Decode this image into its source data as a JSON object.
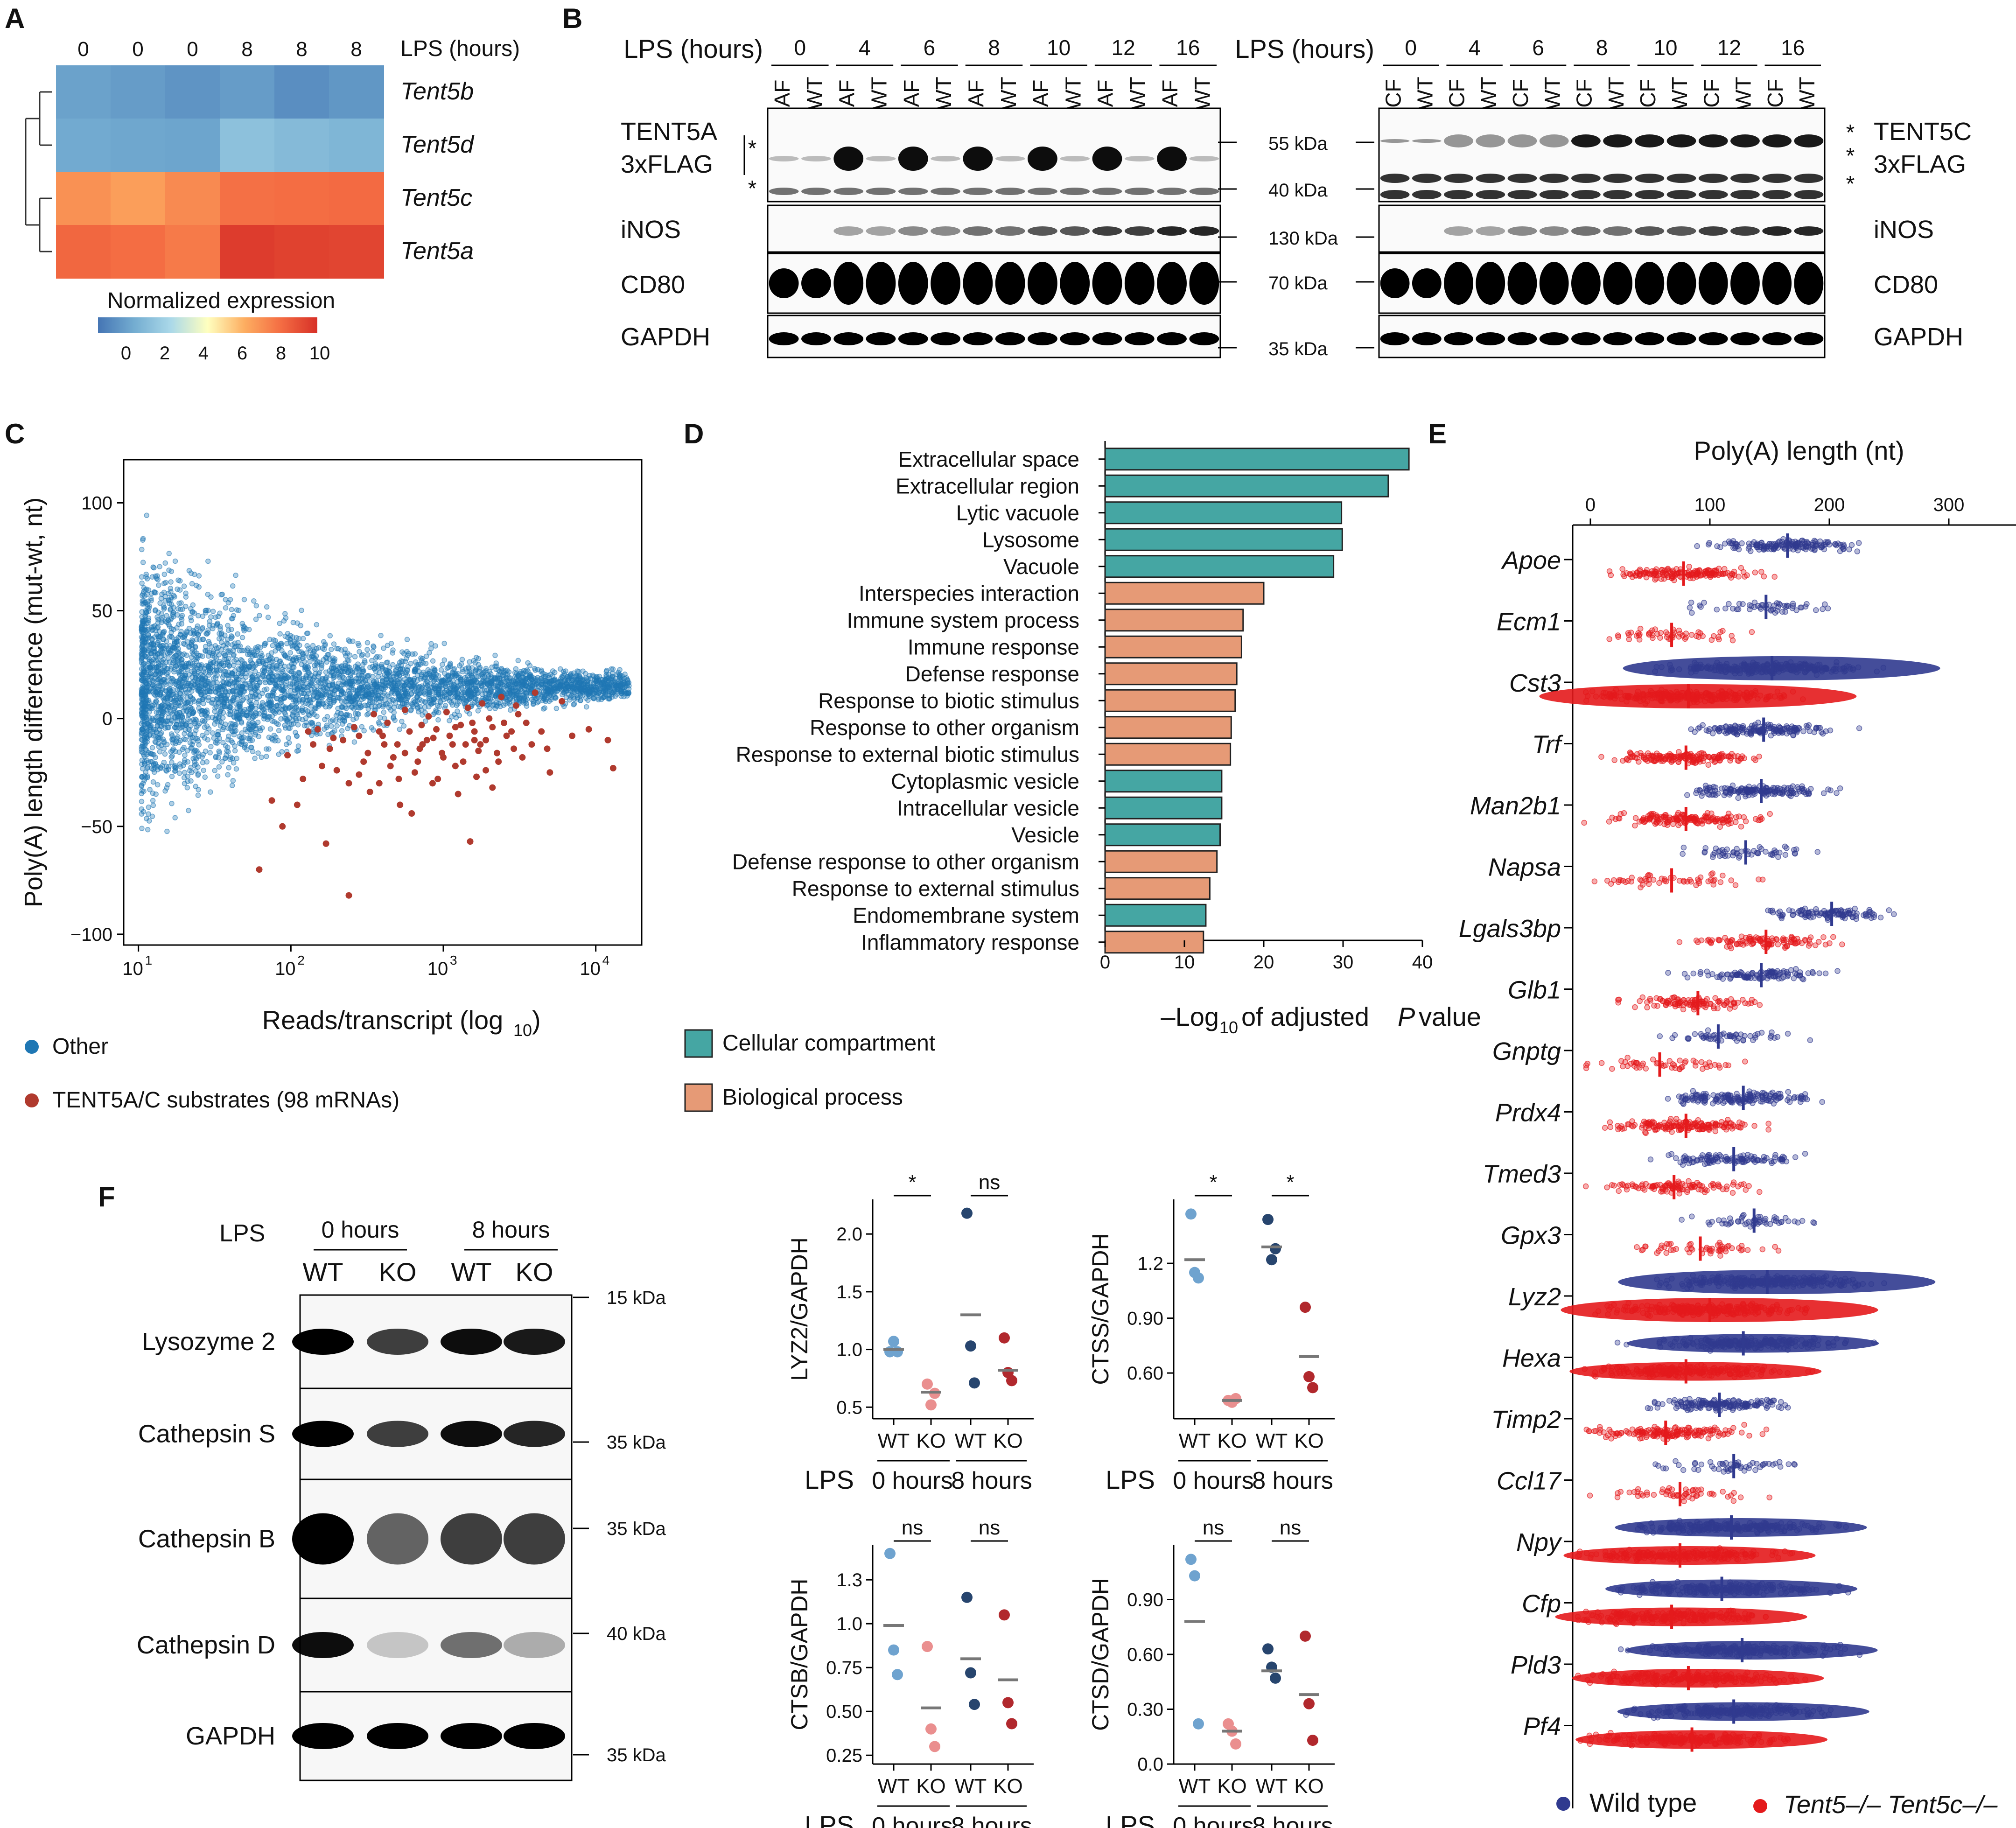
{
  "panels": {
    "A": "A",
    "B": "B",
    "C": "C",
    "D": "D",
    "E": "E",
    "F": "F"
  },
  "heatmap": {
    "lps_label": "LPS (hours)",
    "columns": [
      "0",
      "0",
      "0",
      "8",
      "8",
      "8"
    ],
    "genes": [
      "Tent5b",
      "Tent5d",
      "Tent5c",
      "Tent5a"
    ],
    "values": [
      [
        1.6,
        1.4,
        1.1,
        1.4,
        0.9,
        1.2
      ],
      [
        1.9,
        1.8,
        1.7,
        2.9,
        2.6,
        2.4
      ],
      [
        6.9,
        6.5,
        7.1,
        7.9,
        8.0,
        8.1
      ],
      [
        8.2,
        8.0,
        7.6,
        9.6,
        9.4,
        9.3
      ]
    ],
    "scale_title": "Normalized expression",
    "scale_ticks": [
      "0",
      "2",
      "4",
      "6",
      "8",
      "10"
    ]
  },
  "blotB": {
    "lps_label": "LPS (hours)",
    "times": [
      "0",
      "4",
      "6",
      "8",
      "10",
      "12",
      "16"
    ],
    "left_lanes": [
      "AF",
      "WT"
    ],
    "right_lanes": [
      "CF",
      "WT"
    ],
    "left_rows": [
      "TENT5A\n3xFLAG",
      "iNOS",
      "CD80",
      "GAPDH"
    ],
    "right_rows": [
      "TENT5C\n3xFLAG",
      "iNOS",
      "CD80",
      "GAPDH"
    ],
    "markers": [
      "55 kDa",
      "40 kDa",
      "130 kDa",
      "70 kDa",
      "35 kDa"
    ],
    "star": "*"
  },
  "chart_data": [
    {
      "type": "scatter",
      "panel": "C",
      "xlabel": "Reads/transcript (log10)",
      "ylabel": "Poly(A) length difference (mut-wt, nt)",
      "xscale": "log",
      "xlim": [
        8,
        20000
      ],
      "ylim": [
        -105,
        120
      ],
      "x_ticks": [
        "10^1",
        "10^2",
        "10^3",
        "10^4"
      ],
      "y_ticks": [
        100,
        50,
        0,
        -50,
        -100
      ],
      "series": [
        {
          "name": "Other",
          "color": "#1f77b4",
          "note_count": "~5000 points, dense funnel around y=0"
        },
        {
          "name": "TENT5A/C substrates (98 mRNAs)",
          "color": "#b03a2e",
          "points": [
            [
              62,
              -70
            ],
            [
              95,
              -17
            ],
            [
              120,
              -28
            ],
            [
              140,
              -12
            ],
            [
              170,
              -58
            ],
            [
              220,
              -10
            ],
            [
              240,
              -82
            ],
            [
              300,
              -20
            ],
            [
              320,
              -16
            ],
            [
              380,
              -30
            ],
            [
              400,
              -8
            ],
            [
              450,
              -22
            ],
            [
              500,
              -12
            ],
            [
              520,
              -40
            ],
            [
              600,
              -6
            ],
            [
              650,
              -25
            ],
            [
              700,
              -14
            ],
            [
              780,
              -10
            ],
            [
              850,
              -30
            ],
            [
              900,
              -5
            ],
            [
              1000,
              -18
            ],
            [
              1100,
              -8
            ],
            [
              1200,
              -22
            ],
            [
              1300,
              -3
            ],
            [
              1400,
              -12
            ],
            [
              1500,
              -57
            ],
            [
              1600,
              -6
            ],
            [
              1700,
              -15
            ],
            [
              1900,
              -10
            ],
            [
              2100,
              -4
            ],
            [
              2300,
              -20
            ],
            [
              2600,
              -8
            ],
            [
              3000,
              6
            ],
            [
              3500,
              -2
            ],
            [
              4000,
              12
            ],
            [
              5000,
              -25
            ],
            [
              6000,
              8
            ],
            [
              9000,
              -5
            ],
            [
              12000,
              -10
            ],
            [
              13000,
              -23
            ],
            [
              150,
              -5
            ],
            [
              260,
              -4
            ],
            [
              350,
              2
            ],
            [
              430,
              -2
            ],
            [
              560,
              4
            ],
            [
              800,
              1
            ],
            [
              1050,
              3
            ],
            [
              1450,
              5
            ],
            [
              1800,
              7
            ],
            [
              2400,
              10
            ],
            [
              2800,
              -6
            ],
            [
              180,
              -14
            ],
            [
              280,
              -8
            ],
            [
              470,
              -18
            ],
            [
              680,
              -20
            ],
            [
              920,
              -28
            ],
            [
              1250,
              -35
            ],
            [
              1650,
              -27
            ],
            [
              2100,
              -32
            ],
            [
              110,
              -40
            ],
            [
              75,
              -38
            ],
            [
              88,
              -50
            ],
            [
              200,
              -24
            ],
            [
              330,
              -34
            ],
            [
              620,
              -44
            ],
            [
              1150,
              -12
            ],
            [
              1550,
              -2
            ],
            [
              2000,
              0
            ],
            [
              2900,
              -14
            ],
            [
              3300,
              -18
            ],
            [
              4400,
              -6
            ],
            [
              240,
              -30
            ],
            [
              160,
              -22
            ],
            [
              130,
              -6
            ],
            [
              510,
              -28
            ],
            [
              720,
              -3
            ],
            [
              980,
              -16
            ],
            [
              1350,
              -20
            ],
            [
              1750,
              -12
            ],
            [
              2250,
              -16
            ],
            [
              3800,
              -12
            ],
            [
              410,
              -12
            ],
            [
              560,
              -16
            ],
            [
              860,
              -9
            ],
            [
              1200,
              -4
            ],
            [
              1600,
              -10
            ],
            [
              2500,
              -2
            ],
            [
              3100,
              2
            ],
            [
              4800,
              -14
            ],
            [
              7000,
              -8
            ],
            [
              190,
              -9
            ],
            [
              280,
              -26
            ],
            [
              380,
              -6
            ],
            [
              730,
              -12
            ],
            [
              1900,
              -24
            ]
          ]
        }
      ],
      "legend": [
        "Other",
        "TENT5A/C substrates (98 mRNAs)"
      ]
    },
    {
      "type": "bar",
      "panel": "D",
      "categories": [
        "Extracellular space",
        "Extracellular region",
        "Lytic vacuole",
        "Lysosome",
        "Vacuole",
        "Interspecies interaction",
        "Immune system process",
        "Immune response",
        "Defense response",
        "Response to biotic stimulus",
        "Response to other organism",
        "Response to external biotic stimulus",
        "Cytoplasmic vesicle",
        "Intracellular vesicle",
        "Vesicle",
        "Defense response to other organism",
        "Response to external stimulus",
        "Endomembrane system",
        "Inflammatory response"
      ],
      "values": [
        38.3,
        35.7,
        29.8,
        29.9,
        28.8,
        20.0,
        17.4,
        17.2,
        16.6,
        16.4,
        15.9,
        15.8,
        14.7,
        14.7,
        14.5,
        14.1,
        13.2,
        12.7,
        12.4
      ],
      "groups": [
        "cc",
        "cc",
        "cc",
        "cc",
        "cc",
        "bp",
        "bp",
        "bp",
        "bp",
        "bp",
        "bp",
        "bp",
        "cc",
        "cc",
        "cc",
        "bp",
        "bp",
        "cc",
        "bp"
      ],
      "xlabel": "–Log10 of adjusted P value",
      "xlim": [
        0,
        40
      ],
      "x_ticks": [
        "0",
        "10",
        "20",
        "30",
        "40"
      ],
      "legend": [
        {
          "name": "Cellular compartment",
          "color": "#45a6a3"
        },
        {
          "name": "Biological process",
          "color": "#e69a76"
        }
      ]
    },
    {
      "type": "scatter",
      "panel": "E",
      "title": "Poly(A) length (nt)",
      "x_ticks": [
        "0",
        "100",
        "200",
        "300"
      ],
      "xlim": [
        -15,
        350
      ],
      "genes": [
        "Apoe",
        "Ecm1",
        "Cst3",
        "Trf",
        "Man2b1",
        "Napsa",
        "Lgals3bp",
        "Glb1",
        "Gnptg",
        "Prdx4",
        "Tmed3",
        "Gpx3",
        "Lyz2",
        "Hexa",
        "Timp2",
        "Ccl17",
        "Npy",
        "Cfp",
        "Pld3",
        "Pf4"
      ],
      "wt_median": [
        165,
        147,
        152,
        145,
        143,
        130,
        202,
        143,
        107,
        128,
        120,
        137,
        148,
        128,
        108,
        120,
        118,
        110,
        127,
        120
      ],
      "mut_median": [
        78,
        68,
        82,
        80,
        80,
        68,
        147,
        90,
        58,
        80,
        70,
        92,
        100,
        80,
        63,
        75,
        75,
        68,
        82,
        85
      ],
      "density": [
        3,
        1,
        5,
        3,
        3,
        1,
        2,
        2,
        1,
        3,
        2,
        1,
        5,
        4,
        3,
        1,
        4,
        4,
        4,
        4
      ],
      "legend": [
        {
          "name": "Wild type",
          "color": "#303a8f"
        },
        {
          "name": "Tent5–/– Tent5c–/–",
          "color": "#e41a1c"
        }
      ]
    },
    {
      "type": "scatter",
      "panel": "F",
      "plots": [
        {
          "ylabel": "LYZ2/GAPDH",
          "ylim": [
            0.4,
            2.3
          ],
          "y_ticks": [
            2.0,
            1.5,
            1.0,
            0.5
          ],
          "sig": [
            "*",
            "ns"
          ],
          "points": [
            [
              0.98,
              1.07,
              0.98
            ],
            [
              0.7,
              0.52,
              0.62
            ],
            [
              2.18,
              1.03,
              0.71
            ],
            [
              1.1,
              0.8,
              0.73
            ]
          ],
          "means": [
            1.0,
            0.63,
            1.3,
            0.82
          ]
        },
        {
          "ylabel": "CTSS/GAPDH",
          "ylim": [
            0.35,
            1.55
          ],
          "y_ticks": [
            1.2,
            0.9,
            0.6
          ],
          "sig": [
            "*",
            "*"
          ],
          "points": [
            [
              1.47,
              1.15,
              1.12
            ],
            [
              0.45,
              0.44,
              0.46
            ],
            [
              1.44,
              1.22,
              1.28
            ],
            [
              0.96,
              0.58,
              0.52
            ]
          ],
          "means": [
            1.22,
            0.45,
            1.29,
            0.69
          ]
        },
        {
          "ylabel": "CTSB/GAPDH",
          "ylim": [
            0.2,
            1.45
          ],
          "y_ticks": [
            1.25,
            1.0,
            0.75,
            0.5,
            0.25
          ],
          "sig": [
            "ns",
            "ns"
          ],
          "points": [
            [
              1.4,
              0.85,
              0.71
            ],
            [
              0.87,
              0.4,
              0.3
            ],
            [
              1.15,
              0.72,
              0.54
            ],
            [
              1.05,
              0.55,
              0.43
            ]
          ],
          "means": [
            0.99,
            0.52,
            0.8,
            0.68
          ]
        },
        {
          "ylabel": "CTSD/GAPDH",
          "ylim": [
            0.0,
            1.2
          ],
          "y_ticks": [
            0.9,
            0.6,
            0.3,
            0.0
          ],
          "sig": [
            "ns",
            "ns"
          ],
          "points": [
            [
              1.12,
              1.03,
              0.22
            ],
            [
              0.22,
              0.18,
              0.11
            ],
            [
              0.63,
              0.53,
              0.47
            ],
            [
              0.7,
              0.33,
              0.13
            ]
          ],
          "means": [
            0.78,
            0.18,
            0.51,
            0.38
          ]
        }
      ],
      "x_lanes": [
        "WT",
        "KO",
        "WT",
        "KO"
      ],
      "lps_prefix": "LPS",
      "lps_groups": [
        "0 hours",
        "8 hours"
      ],
      "colors": [
        "#6fa3cf",
        "#ea8f8f",
        "#27456e",
        "#b1282d"
      ]
    }
  ],
  "legendC": {
    "other": "Other",
    "substrates": "TENT5A/C substrates (98 mRNAs)",
    "colors": [
      "#1f77b4",
      "#b03a2e"
    ]
  },
  "blotF": {
    "lps": "LPS",
    "groups": [
      "0 hours",
      "8 hours"
    ],
    "lanes": [
      "WT",
      "KO",
      "WT",
      "KO"
    ],
    "rows": [
      "Lysozyme 2",
      "Cathepsin S",
      "Cathepsin B",
      "Cathepsin D",
      "GAPDH"
    ],
    "markers": [
      "15 kDa",
      "35 kDa",
      "35 kDa",
      "40 kDa",
      "35 kDa"
    ]
  }
}
